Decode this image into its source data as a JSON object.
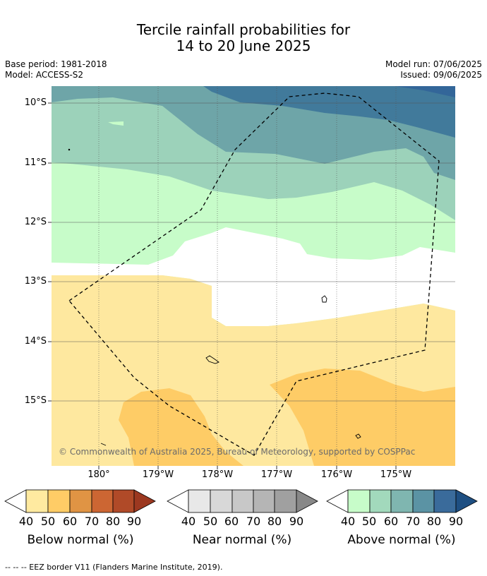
{
  "title_line1": "Tercile rainfall probabilities for",
  "title_line2": "14 to 20 June 2025",
  "meta": {
    "base_period": "Base period: 1981-2018",
    "model": "Model: ACCESS-S2",
    "model_run": "Model run: 07/06/2025",
    "issued": "Issued: 09/06/2025"
  },
  "map": {
    "lat_labels": [
      "10°S",
      "11°S",
      "12°S",
      "13°S",
      "14°S",
      "15°S"
    ],
    "lon_labels": [
      "180°",
      "179°W",
      "178°W",
      "177°W",
      "176°W",
      "175°W"
    ],
    "copyright": "© Commonwealth of Australia 2025, Bureau of Meteorology, supported by COSPPac",
    "colors": {
      "above_50": "#c7fcc9",
      "above_60": "#9cd2ba",
      "above_70": "#6ea5a8",
      "above_80": "#417a9b",
      "above_90": "#336699",
      "below_50": "#fee89f",
      "below_60": "#fecc66",
      "near_normal": "#ffffff"
    }
  },
  "colorbars": [
    {
      "name": "Below normal (%)",
      "ticks": [
        "40",
        "50",
        "60",
        "70",
        "80",
        "90"
      ],
      "colors": [
        "#ffeaa0",
        "#ffcc66",
        "#e09444",
        "#cc6633",
        "#b04a28",
        "#9c3820"
      ]
    },
    {
      "name": "Near normal (%)",
      "ticks": [
        "40",
        "50",
        "60",
        "70",
        "80",
        "90"
      ],
      "colors": [
        "#e8e8e8",
        "#d8d8d8",
        "#c8c8c8",
        "#b5b5b5",
        "#a0a0a0",
        "#888888"
      ]
    },
    {
      "name": "Above normal (%)",
      "ticks": [
        "40",
        "50",
        "60",
        "70",
        "80",
        "90"
      ],
      "colors": [
        "#c7fcc9",
        "#a2d9bc",
        "#7fb6b0",
        "#5b93a4",
        "#3a6b9b",
        "#1e4f82"
      ]
    }
  ],
  "eez_note": "--  --  -- EEZ border V11 (Flanders Marine Institute, 2019)."
}
